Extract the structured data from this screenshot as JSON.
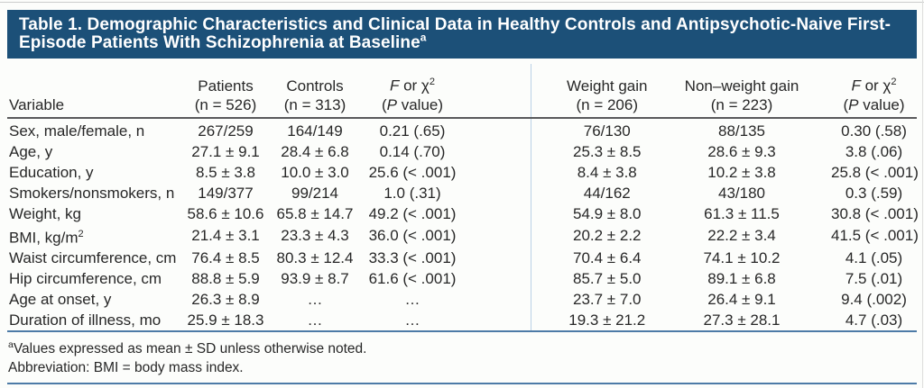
{
  "title": {
    "text": "Table 1. Demographic Characteristics and Clinical Data in Healthy Controls and Antipsychotic-Naive First-Episode Patients With Schizophrenia at Baseline",
    "sup": "a"
  },
  "colors": {
    "band": "#1c5078",
    "rule_blue": "#4d7ba7",
    "group_divider": "#bad1e6",
    "header_rule": "#59595b",
    "text": "#272727",
    "background": "#fcfdfb"
  },
  "table": {
    "header": {
      "variable": "Variable",
      "patients": {
        "line1": "Patients",
        "line2": "(n = 526)"
      },
      "controls": {
        "line1": "Controls",
        "line2": "(n = 313)"
      },
      "weight_gain": {
        "line1": "Weight gain",
        "line2": "(n = 206)"
      },
      "non_weight_gain": {
        "line1": "Non–weight gain",
        "line2": "(n = 223)"
      },
      "fchi": {
        "f": "F",
        "mid": " or χ",
        "sup": "2",
        "p_open": "(",
        "p": "P",
        "p_rest": " value)"
      }
    },
    "rows": [
      {
        "label": "Sex, male/female, n",
        "cells": [
          "267/259",
          "164/149",
          "0.21 (.65)",
          "76/130",
          "88/135",
          "0.30 (.58)"
        ]
      },
      {
        "label": "Age, y",
        "cells": [
          "27.1 ± 9.1",
          "28.4 ± 6.8",
          "0.14 (.70)",
          "25.3 ± 8.5",
          "28.6 ± 9.3",
          "3.8 (.06)"
        ]
      },
      {
        "label": "Education, y",
        "cells": [
          "8.5 ± 3.8",
          "10.0 ± 3.0",
          "25.6 (< .001)",
          "8.4 ± 3.8",
          "10.2 ± 3.8",
          "25.8 (< .001)"
        ]
      },
      {
        "label": "Smokers/nonsmokers, n",
        "cells": [
          "149/377",
          "99/214",
          "1.0 (.31)",
          "44/162",
          "43/180",
          "0.3 (.59)"
        ]
      },
      {
        "label": "Weight, kg",
        "cells": [
          "58.6 ± 10.6",
          "65.8 ± 14.7",
          "49.2 (< .001)",
          "54.9 ± 8.0",
          "61.3 ± 11.5",
          "30.8 (< .001)"
        ]
      },
      {
        "label": "BMI, kg/m",
        "label_sup": "2",
        "cells": [
          "21.4 ± 3.1",
          "23.3 ± 4.3",
          "36.0 (< .001)",
          "20.2 ± 2.2",
          "22.2 ± 3.4",
          "41.5 (< .001)"
        ]
      },
      {
        "label": "Waist circumference, cm",
        "cells": [
          "76.4 ± 8.5",
          "80.3 ± 12.4",
          "33.3 (< .001)",
          "70.4 ± 6.4",
          "74.1 ± 10.2",
          "4.1 (.05)"
        ]
      },
      {
        "label": "Hip circumference, cm",
        "cells": [
          "88.8 ± 5.9",
          "93.9 ± 8.7",
          "61.6 (< .001)",
          "85.7 ± 5.0",
          "89.1 ± 6.8",
          "7.5 (.01)"
        ]
      },
      {
        "label": "Age at onset, y",
        "cells": [
          "26.3 ± 8.9",
          "…",
          "…",
          "23.7 ± 7.0",
          "26.4 ± 9.1",
          "9.4 (.002)"
        ]
      },
      {
        "label": "Duration of illness, mo",
        "cells": [
          "25.9 ± 18.3",
          "…",
          "…",
          "19.3 ± 21.2",
          "27.3 ± 28.1",
          "4.7 (.03)"
        ]
      }
    ]
  },
  "footnotes": [
    {
      "sup": "a",
      "text": "Values expressed as mean ± SD unless otherwise noted."
    },
    {
      "sup": "",
      "text": "Abbreviation: BMI = body mass index."
    }
  ]
}
